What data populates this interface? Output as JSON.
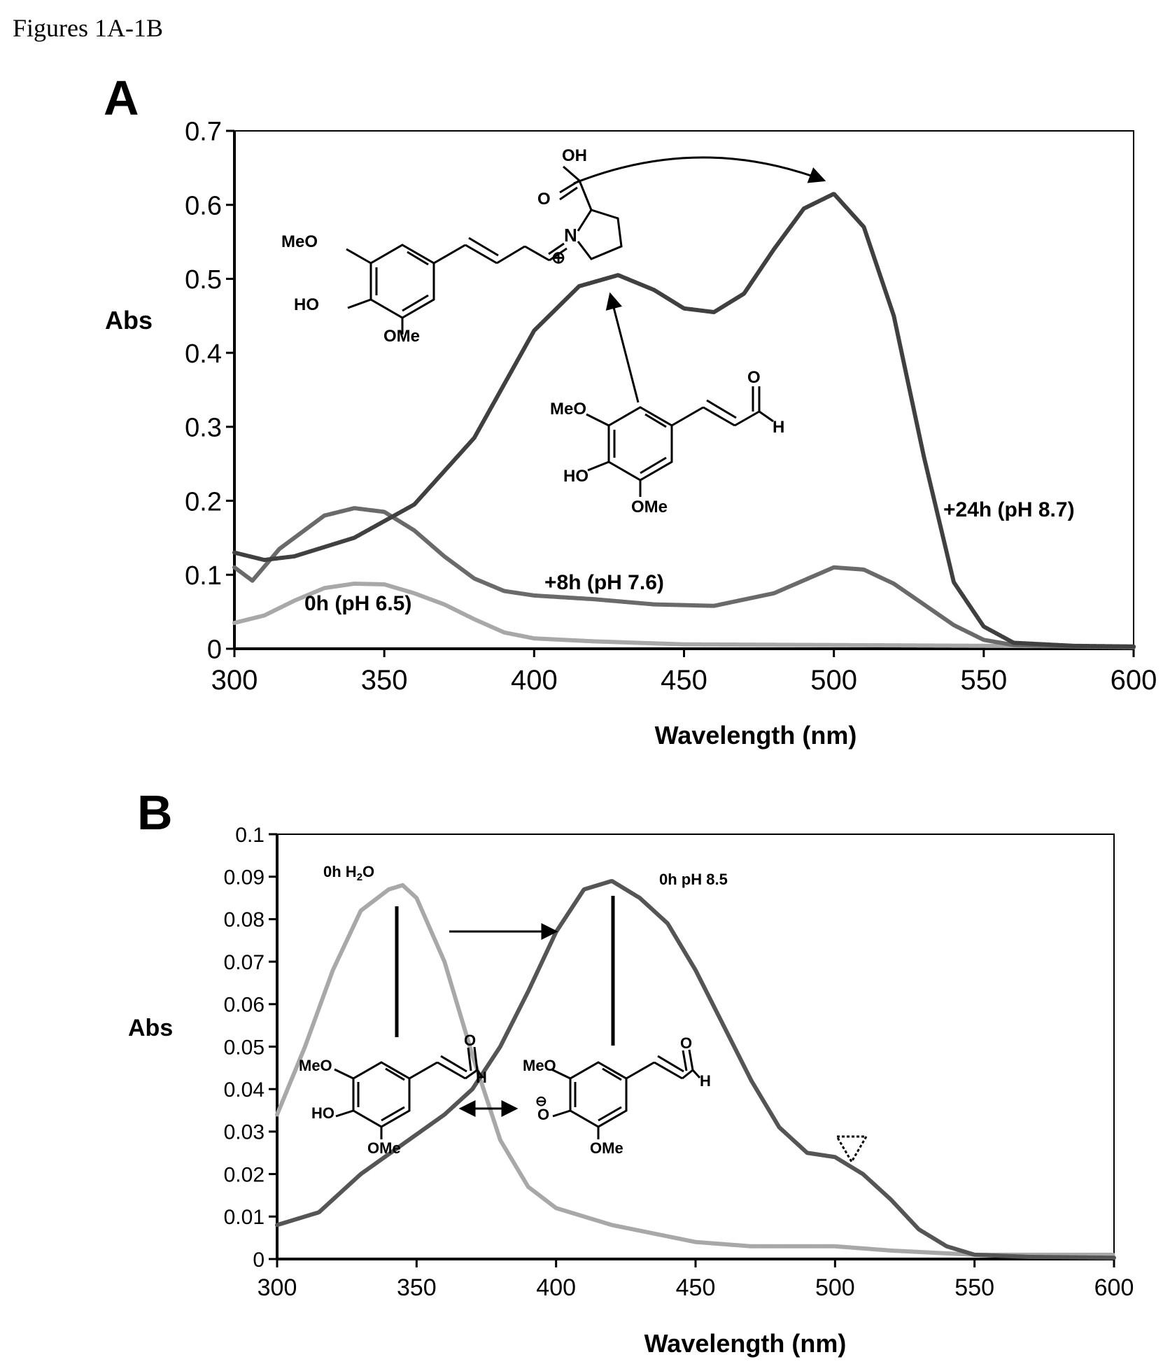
{
  "page": {
    "title": "Figures 1A-1B"
  },
  "chart_data": [
    {
      "type": "line",
      "panel": "A",
      "xlabel": "Wavelength (nm)",
      "ylabel": "Abs",
      "xlim": [
        300,
        600
      ],
      "ylim": [
        0,
        0.7
      ],
      "xticks": [
        "300",
        "350",
        "400",
        "450",
        "500",
        "550",
        "600"
      ],
      "yticks": [
        "0",
        "0.1",
        "0.2",
        "0.3",
        "0.4",
        "0.5",
        "0.6",
        "0.7"
      ],
      "grid": false,
      "series": [
        {
          "name": "0h (pH 6.5)",
          "color": "#a8a8a8",
          "x": [
            300,
            310,
            320,
            330,
            340,
            350,
            360,
            370,
            380,
            390,
            400,
            420,
            450,
            500,
            550,
            600
          ],
          "y": [
            0.035,
            0.045,
            0.065,
            0.082,
            0.088,
            0.087,
            0.075,
            0.06,
            0.04,
            0.022,
            0.014,
            0.01,
            0.006,
            0.005,
            0.004,
            0.003
          ]
        },
        {
          "name": "+8h (pH 7.6)",
          "color": "#6a6a6a",
          "x": [
            300,
            306,
            315,
            330,
            340,
            350,
            360,
            370,
            380,
            390,
            400,
            420,
            440,
            460,
            480,
            500,
            510,
            520,
            530,
            540,
            550,
            560,
            580,
            600
          ],
          "y": [
            0.11,
            0.092,
            0.135,
            0.18,
            0.19,
            0.185,
            0.16,
            0.125,
            0.095,
            0.078,
            0.072,
            0.067,
            0.06,
            0.058,
            0.075,
            0.11,
            0.107,
            0.088,
            0.06,
            0.032,
            0.012,
            0.005,
            0.003,
            0.002
          ]
        },
        {
          "name": "+24h (pH 8.7)",
          "color": "#404040",
          "x": [
            300,
            310,
            320,
            340,
            360,
            380,
            400,
            415,
            428,
            440,
            450,
            460,
            470,
            480,
            490,
            500,
            510,
            520,
            530,
            540,
            550,
            560,
            580,
            600
          ],
          "y": [
            0.13,
            0.12,
            0.125,
            0.15,
            0.195,
            0.285,
            0.43,
            0.49,
            0.505,
            0.485,
            0.46,
            0.455,
            0.48,
            0.54,
            0.595,
            0.615,
            0.57,
            0.45,
            0.26,
            0.09,
            0.03,
            0.008,
            0.004,
            0.003
          ]
        }
      ],
      "annotations": [
        "0h (pH 6.5)",
        "+8h (pH 7.6)",
        "+24h (pH 8.7)"
      ]
    },
    {
      "type": "line",
      "panel": "B",
      "xlabel": "Wavelength (nm)",
      "ylabel": "Abs",
      "xlim": [
        300,
        600
      ],
      "ylim": [
        0,
        0.1
      ],
      "xticks": [
        "300",
        "350",
        "400",
        "450",
        "500",
        "550",
        "600"
      ],
      "yticks": [
        "0",
        "0.01",
        "0.02",
        "0.03",
        "0.04",
        "0.05",
        "0.06",
        "0.07",
        "0.08",
        "0.09",
        "0.1"
      ],
      "grid": false,
      "series": [
        {
          "name": "0h H₂O",
          "color": "#a8a8a8",
          "x": [
            300,
            310,
            320,
            330,
            340,
            345,
            350,
            360,
            370,
            380,
            390,
            400,
            420,
            450,
            470,
            500,
            520,
            550,
            570,
            600
          ],
          "y": [
            0.034,
            0.05,
            0.068,
            0.082,
            0.087,
            0.088,
            0.085,
            0.07,
            0.048,
            0.028,
            0.017,
            0.012,
            0.008,
            0.004,
            0.003,
            0.003,
            0.002,
            0.001,
            0.001,
            0.001
          ]
        },
        {
          "name": "0h pH 8.5",
          "color": "#555555",
          "x": [
            300,
            315,
            330,
            345,
            360,
            370,
            380,
            390,
            400,
            410,
            420,
            430,
            440,
            450,
            460,
            470,
            480,
            490,
            500,
            510,
            520,
            530,
            540,
            550,
            570,
            600
          ],
          "y": [
            0.008,
            0.011,
            0.02,
            0.027,
            0.034,
            0.04,
            0.05,
            0.063,
            0.077,
            0.087,
            0.089,
            0.085,
            0.079,
            0.068,
            0.055,
            0.042,
            0.031,
            0.025,
            0.024,
            0.02,
            0.014,
            0.007,
            0.003,
            0.001,
            0.0005,
            0.0003
          ]
        }
      ],
      "annotations": [
        "0h H₂O",
        "0h pH 8.5"
      ]
    }
  ],
  "panel_a": {
    "letter": "A",
    "curve_labels": [
      "0h (pH 6.5)",
      "+8h (pH 7.6)",
      "+24h (pH 8.7)"
    ],
    "iminium_structure": {
      "oh": "OH",
      "o": "O",
      "n": "N",
      "plus": "⊕",
      "meo": "MeO",
      "ho": "HO",
      "ome": "OMe"
    },
    "aldehyde_structure": {
      "o": "O",
      "h": "H",
      "meo": "MeO",
      "ho": "HO",
      "ome": "OMe"
    }
  },
  "panel_b": {
    "letter": "B",
    "curve_labels": [
      "0h H",
      "2",
      "O",
      "0h pH 8.5"
    ],
    "neutral_structure": {
      "o": "O",
      "h": "H",
      "meo": "MeO",
      "ho": "HO",
      "ome": "OMe"
    },
    "phenolate_structure": {
      "o": "O",
      "h": "H",
      "meo": "MeO",
      "ominus": "⊖",
      "ome": "OMe"
    }
  }
}
